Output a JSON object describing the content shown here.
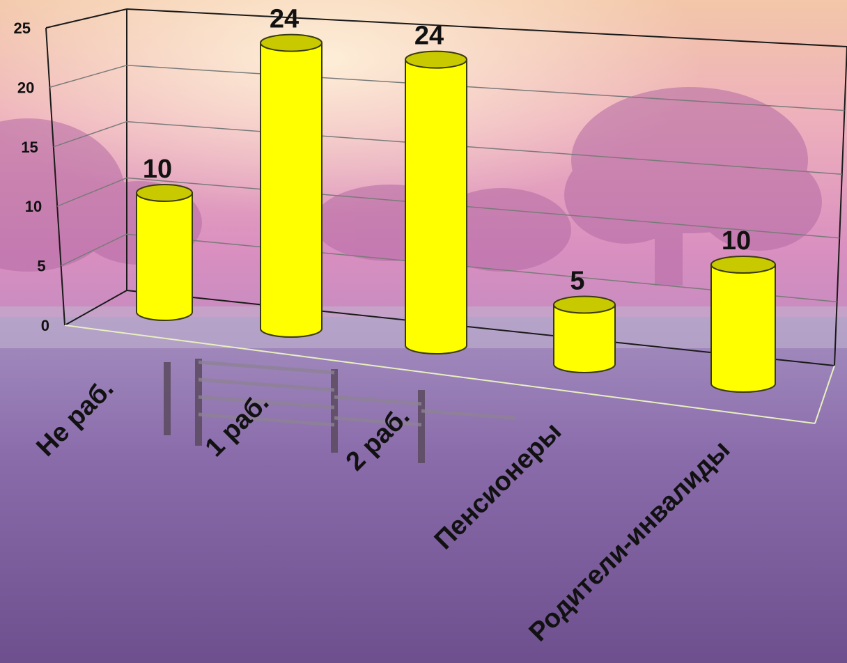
{
  "colors": {
    "bar_fill": "#ffff00",
    "bar_top": "#c9c900",
    "bar_stroke": "#3a3a10",
    "text": "#111111"
  },
  "chart_data": {
    "type": "bar",
    "style": "3d-cylinder",
    "categories": [
      "Не раб.",
      "1 раб.",
      "2 раб.",
      "Пенсионеры",
      "Родители-инвалиды"
    ],
    "values": [
      10,
      24,
      24,
      5,
      10
    ],
    "data_labels": [
      "10",
      "24",
      "24",
      "5",
      "10"
    ],
    "y_ticks": [
      "0",
      "5",
      "10",
      "15",
      "20",
      "25"
    ],
    "ylim": [
      0,
      25
    ],
    "grid": true,
    "legend": "none"
  }
}
